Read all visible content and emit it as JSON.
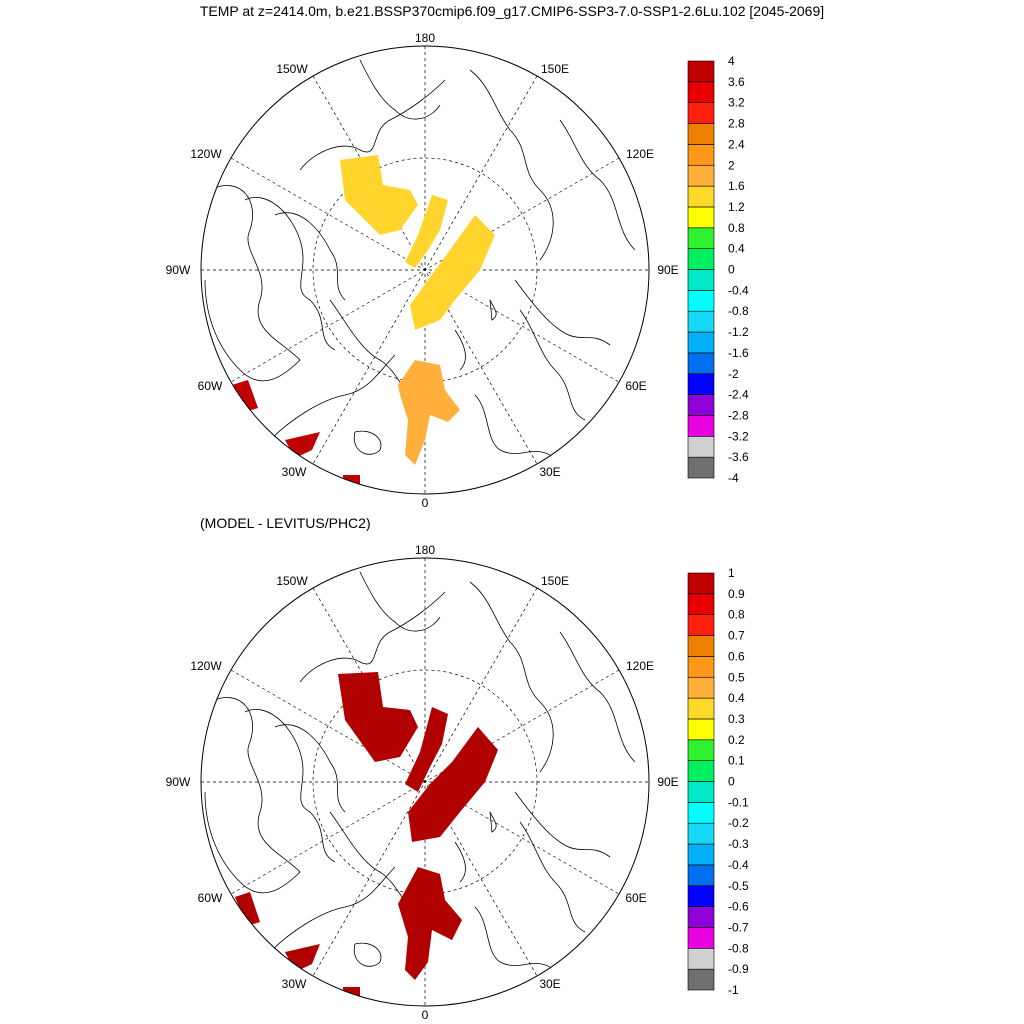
{
  "title": "TEMP at z=2414.0m, b.e21.BSSP370cmip6.f09_g17.CMIP6-SSP3-7.0-SSP1-2.6Lu.102 [2045-2069]",
  "subtitle": "(MODEL - LEVITUS/PHC2)",
  "lon_labels": {
    "l180": "180",
    "l150W": "150W",
    "l150E": "150E",
    "l120W": "120W",
    "l120E": "120E",
    "l90W": "90W",
    "l90E": "90E",
    "l60W": "60W",
    "l60E": "60E",
    "l30W": "30W",
    "l30E": "30E",
    "l0": "0"
  },
  "colors": {
    "bins": [
      "#707070",
      "#d0d0d0",
      "#e800e0",
      "#9000d8",
      "#0000ff",
      "#0070f0",
      "#00b0f8",
      "#18d8f8",
      "#00ffff",
      "#00e8c8",
      "#00f060",
      "#30f030",
      "#ffff00",
      "#ffd82c",
      "#ffb03c",
      "#ff9818",
      "#f08000",
      "#ff2010",
      "#e80000",
      "#c00000"
    ],
    "map1_fill_a": "#ffd52d",
    "map1_fill_b": "#ffb03c",
    "map1_fill_c": "#c00000",
    "map2_fill": "#b00000"
  },
  "colorbar1": {
    "labels": [
      "4",
      "3.6",
      "3.2",
      "2.8",
      "2.4",
      "2",
      "1.6",
      "1.2",
      "0.8",
      "0.4",
      "0",
      "-0.4",
      "-0.8",
      "-1.2",
      "-1.6",
      "-2",
      "-2.4",
      "-2.8",
      "-3.2",
      "-3.6",
      "-4"
    ]
  },
  "colorbar2": {
    "labels": [
      "1",
      "0.9",
      "0.8",
      "0.7",
      "0.6",
      "0.5",
      "0.4",
      "0.3",
      "0.2",
      "0.1",
      "0",
      "-0.1",
      "-0.2",
      "-0.3",
      "-0.4",
      "-0.5",
      "-0.6",
      "-0.7",
      "-0.8",
      "-0.9",
      "-1"
    ]
  }
}
